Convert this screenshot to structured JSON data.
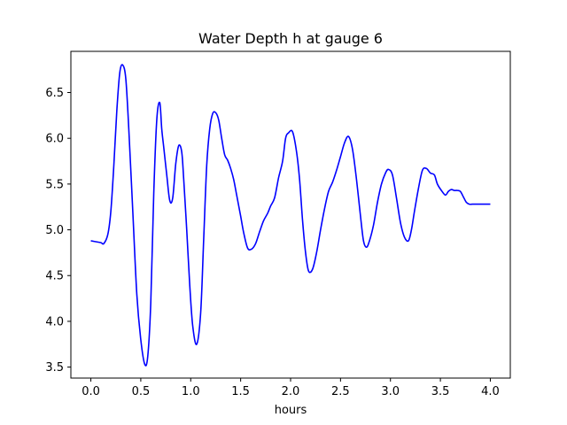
{
  "chart_data": {
    "type": "line",
    "title": "Water Depth h at gauge 6",
    "xlabel": "hours",
    "ylabel": "",
    "xlim": [
      -0.2,
      4.2
    ],
    "ylim": [
      3.38,
      6.95
    ],
    "xticks": [
      0.0,
      0.5,
      1.0,
      1.5,
      2.0,
      2.5,
      3.0,
      3.5,
      4.0
    ],
    "xtick_labels": [
      "0.0",
      "0.5",
      "1.0",
      "1.5",
      "2.0",
      "2.5",
      "3.0",
      "3.5",
      "4.0"
    ],
    "yticks": [
      3.5,
      4.0,
      4.5,
      5.0,
      5.5,
      6.0,
      6.5
    ],
    "ytick_labels": [
      "3.5",
      "4.0",
      "4.5",
      "5.0",
      "5.5",
      "6.0",
      "6.5"
    ],
    "grid": false,
    "series": [
      {
        "color": "#0000ff",
        "x": [
          0.0,
          0.05,
          0.1,
          0.13,
          0.17,
          0.2,
          0.23,
          0.26,
          0.29,
          0.32,
          0.35,
          0.38,
          0.42,
          0.46,
          0.5,
          0.54,
          0.57,
          0.6,
          0.63,
          0.66,
          0.69,
          0.71,
          0.73,
          0.76,
          0.79,
          0.82,
          0.85,
          0.88,
          0.91,
          0.93,
          0.96,
          0.99,
          1.02,
          1.06,
          1.1,
          1.13,
          1.16,
          1.19,
          1.22,
          1.25,
          1.28,
          1.31,
          1.34,
          1.37,
          1.4,
          1.43,
          1.46,
          1.5,
          1.53,
          1.57,
          1.61,
          1.65,
          1.69,
          1.73,
          1.77,
          1.8,
          1.84,
          1.88,
          1.92,
          1.95,
          1.98,
          2.02,
          2.06,
          2.09,
          2.12,
          2.15,
          2.18,
          2.22,
          2.26,
          2.3,
          2.34,
          2.38,
          2.42,
          2.46,
          2.5,
          2.54,
          2.58,
          2.62,
          2.66,
          2.7,
          2.73,
          2.76,
          2.79,
          2.83,
          2.87,
          2.91,
          2.95,
          2.98,
          3.02,
          3.06,
          3.1,
          3.14,
          3.18,
          3.21,
          3.24,
          3.28,
          3.32,
          3.36,
          3.4,
          3.44,
          3.47,
          3.51,
          3.55,
          3.58,
          3.61,
          3.64,
          3.67,
          3.7,
          3.73,
          3.76,
          3.79,
          3.82,
          3.85,
          3.88,
          3.91,
          3.94,
          3.97,
          4.0
        ],
        "values": [
          4.88,
          4.87,
          4.86,
          4.85,
          4.95,
          5.2,
          5.7,
          6.3,
          6.72,
          6.8,
          6.65,
          6.1,
          5.2,
          4.3,
          3.8,
          3.53,
          3.62,
          4.2,
          5.4,
          6.2,
          6.39,
          6.1,
          5.9,
          5.6,
          5.32,
          5.35,
          5.72,
          5.92,
          5.85,
          5.55,
          5.0,
          4.4,
          3.95,
          3.75,
          4.1,
          4.9,
          5.7,
          6.1,
          6.27,
          6.28,
          6.2,
          6.0,
          5.82,
          5.76,
          5.67,
          5.55,
          5.38,
          5.15,
          4.97,
          4.8,
          4.79,
          4.85,
          4.98,
          5.1,
          5.18,
          5.26,
          5.35,
          5.57,
          5.75,
          6.0,
          6.06,
          6.07,
          5.85,
          5.55,
          5.1,
          4.75,
          4.55,
          4.57,
          4.75,
          5.0,
          5.23,
          5.42,
          5.52,
          5.65,
          5.8,
          5.95,
          6.02,
          5.88,
          5.55,
          5.15,
          4.88,
          4.81,
          4.88,
          5.05,
          5.3,
          5.5,
          5.62,
          5.66,
          5.6,
          5.35,
          5.08,
          4.92,
          4.88,
          5.0,
          5.2,
          5.45,
          5.65,
          5.67,
          5.62,
          5.6,
          5.5,
          5.43,
          5.38,
          5.42,
          5.44,
          5.43,
          5.43,
          5.42,
          5.36,
          5.3,
          5.28,
          5.28,
          5.28,
          5.28,
          5.28,
          5.28,
          5.28,
          5.28
        ]
      }
    ]
  }
}
